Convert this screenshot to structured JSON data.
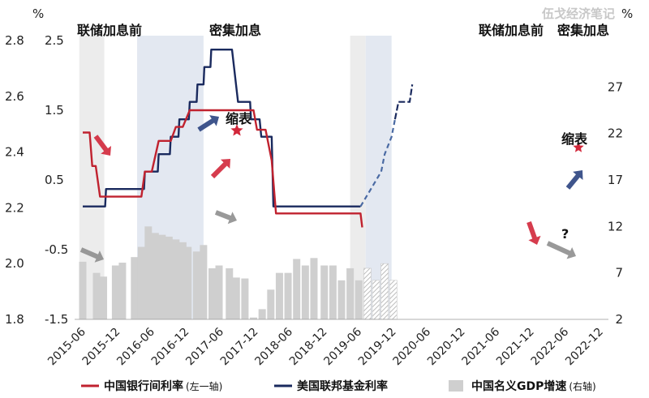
{
  "watermark": "伍戈经济笔记",
  "chart_data": {
    "type": "line",
    "categories": [
      "2015-06",
      "2015-12",
      "2016-06",
      "2016-12",
      "2017-06",
      "2017-12",
      "2018-06",
      "2018-12",
      "2019-06",
      "2019-12",
      "2020-06",
      "2020-12",
      "2021-06",
      "2021-12",
      "2022-06",
      "2022-12"
    ],
    "left_axis": {
      "unit": "%",
      "range": [
        1.8,
        2.8
      ],
      "ticks": [
        "1.8",
        "2.0",
        "2.2",
        "2.4",
        "2.6",
        "2.8"
      ]
    },
    "mid_axis": {
      "range": [
        -1.5,
        2.5
      ],
      "ticks": [
        "-1.5",
        "-0.5",
        "0.5",
        "1.5",
        "2.5"
      ]
    },
    "right_axis": {
      "unit": "%",
      "range": [
        2,
        32
      ],
      "ticks": [
        "2",
        "7",
        "12",
        "17",
        "22",
        "27"
      ]
    },
    "series": [
      {
        "name": "中国银行间利率",
        "axis_note": "(左一轴)",
        "color": "#c0222f",
        "points": [
          [
            0.0,
            2.47
          ],
          [
            0.4,
            2.47
          ],
          [
            0.55,
            2.35
          ],
          [
            0.75,
            2.35
          ],
          [
            1.0,
            2.24
          ],
          [
            1.2,
            2.24
          ],
          [
            1.5,
            2.24
          ],
          [
            3.4,
            2.24
          ],
          [
            3.6,
            2.33
          ],
          [
            4.0,
            2.33
          ],
          [
            4.4,
            2.44
          ],
          [
            4.8,
            2.44
          ],
          [
            5.1,
            2.44
          ],
          [
            5.4,
            2.49
          ],
          [
            5.8,
            2.49
          ],
          [
            6.2,
            2.55
          ],
          [
            6.7,
            2.55
          ],
          [
            7.2,
            2.55
          ],
          [
            8.8,
            2.55
          ],
          [
            9.4,
            2.55
          ],
          [
            9.9,
            2.55
          ],
          [
            10.1,
            2.48
          ],
          [
            10.6,
            2.48
          ],
          [
            10.95,
            2.37
          ],
          [
            11.2,
            2.18
          ],
          [
            12.2,
            2.18
          ],
          [
            13.2,
            2.18
          ],
          [
            14.2,
            2.18
          ],
          [
            15.0,
            2.18
          ],
          [
            15.55,
            2.18
          ],
          [
            15.95,
            2.18
          ],
          [
            16.1,
            2.18
          ],
          [
            16.2,
            2.13
          ]
        ]
      },
      {
        "name": "美国联邦基金利率",
        "color": "#1a2a5e",
        "points": [
          [
            0.0,
            0.12
          ],
          [
            1.3,
            0.12
          ],
          [
            1.35,
            0.37
          ],
          [
            3.55,
            0.37
          ],
          [
            3.6,
            0.62
          ],
          [
            4.35,
            0.62
          ],
          [
            4.4,
            0.87
          ],
          [
            5.05,
            0.87
          ],
          [
            5.1,
            1.12
          ],
          [
            5.55,
            1.12
          ],
          [
            5.6,
            1.37
          ],
          [
            6.15,
            1.37
          ],
          [
            6.2,
            1.62
          ],
          [
            6.6,
            1.62
          ],
          [
            6.65,
            1.87
          ],
          [
            7.0,
            1.87
          ],
          [
            7.05,
            2.12
          ],
          [
            7.4,
            2.12
          ],
          [
            7.45,
            2.37
          ],
          [
            8.4,
            2.37
          ],
          [
            8.65,
            2.37
          ],
          [
            9.0,
            1.62
          ],
          [
            9.1,
            1.62
          ],
          [
            9.7,
            1.62
          ],
          [
            9.75,
            1.37
          ],
          [
            10.25,
            1.37
          ],
          [
            10.35,
            1.12
          ],
          [
            10.95,
            1.12
          ],
          [
            11.05,
            0.12
          ],
          [
            15.55,
            0.12
          ],
          [
            16.1,
            0.12
          ]
        ],
        "projection": [
          [
            16.1,
            0.12
          ],
          [
            16.7,
            0.37
          ],
          [
            17.3,
            0.62
          ],
          [
            17.5,
            0.87
          ],
          [
            17.9,
            1.12
          ],
          [
            18.1,
            1.37
          ]
        ],
        "projection2": [
          [
            18.1,
            1.37
          ],
          [
            18.3,
            1.62
          ],
          [
            18.95,
            1.62
          ],
          [
            19.1,
            1.87
          ]
        ]
      },
      {
        "name": "中国名义GDP增速",
        "axis_note": "(右轴)",
        "color": "#cfcfcf",
        "type": "bar",
        "positions": [
          0.0,
          0.8,
          1.2,
          1.9,
          2.3,
          3.0,
          3.4,
          3.8,
          4.2,
          4.6,
          5.0,
          5.4,
          5.8,
          6.1,
          6.6,
          7.0,
          7.5,
          7.9,
          8.5,
          8.9,
          9.4,
          9.9,
          10.4,
          10.9,
          11.4,
          11.9,
          12.4,
          12.9,
          13.4,
          14.0,
          14.5,
          15.0,
          15.5,
          16.0,
          16.5,
          17.0,
          17.5,
          18.0,
          18.5
        ],
        "values": [
          8.2,
          7.0,
          6.6,
          7.8,
          8.1,
          8.7,
          9.8,
          12.0,
          11.3,
          11.1,
          10.9,
          10.6,
          10.3,
          9.8,
          9.3,
          10.0,
          7.5,
          7.8,
          7.5,
          6.5,
          6.4,
          2.2,
          3.1,
          5.2,
          7.0,
          7.0,
          8.5,
          7.8,
          8.6,
          7.8,
          7.8,
          6.2,
          7.5,
          6.2
        ]
      }
    ],
    "projected_bars": {
      "positions": [
        16.5,
        17.0,
        17.5,
        18.0,
        18.5
      ],
      "values": [
        7.5,
        6.2,
        8.0,
        6.2,
        0
      ]
    },
    "regions": [
      {
        "label": "联储加息前",
        "start": -0.2,
        "end": 1.25
      },
      {
        "label": "密集加息",
        "start": 3.15,
        "end": 7.0
      },
      {
        "label": "联储加息前",
        "start": 15.5,
        "end": 16.4
      },
      {
        "label": "密集加息",
        "start": 16.4,
        "end": 17.9
      }
    ],
    "annotations": {
      "taper1": "缩表",
      "taper2": "缩表",
      "question": "?"
    },
    "legend": [
      {
        "label": "中国银行间利率",
        "note": "(左一轴)",
        "kind": "line",
        "color": "#c0222f"
      },
      {
        "label": "美国联邦基金利率",
        "note": "",
        "kind": "line",
        "color": "#1a2a5e"
      },
      {
        "label": "中国名义GDP增速",
        "note": "(右轴)",
        "kind": "bar",
        "color": "#cfcfcf"
      }
    ]
  }
}
